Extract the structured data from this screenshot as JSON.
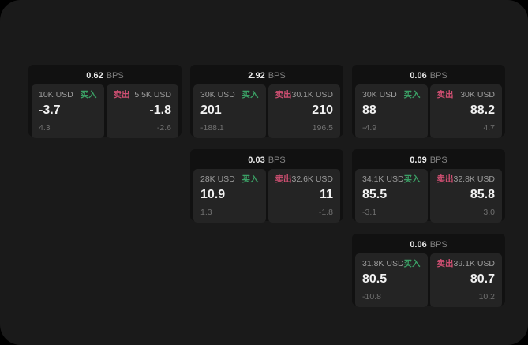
{
  "colors": {
    "surface": "#1a1a1a",
    "card": "#111111",
    "panel": "#242424",
    "buy": "#3ba065",
    "sell": "#cf4f72"
  },
  "labels": {
    "bps": "BPS",
    "buy": "买入",
    "sell": "卖出"
  },
  "cards": [
    {
      "bps": "0.62",
      "buy": {
        "amount": "10K USD",
        "price": "-3.7",
        "delta": "4.3"
      },
      "sell": {
        "amount": "5.5K USD",
        "price": "-1.8",
        "delta": "-2.6"
      }
    },
    {
      "bps": "2.92",
      "buy": {
        "amount": "30K USD",
        "price": "201",
        "delta": "-188.1"
      },
      "sell": {
        "amount": "30.1K USD",
        "price": "210",
        "delta": "196.5"
      }
    },
    {
      "bps": "0.06",
      "buy": {
        "amount": "30K USD",
        "price": "88",
        "delta": "-4.9"
      },
      "sell": {
        "amount": "30K USD",
        "price": "88.2",
        "delta": "4.7"
      }
    },
    {
      "bps": "0.03",
      "buy": {
        "amount": "28K USD",
        "price": "10.9",
        "delta": "1.3"
      },
      "sell": {
        "amount": "32.6K USD",
        "price": "11",
        "delta": "-1.8"
      }
    },
    {
      "bps": "0.09",
      "buy": {
        "amount": "34.1K USD",
        "price": "85.5",
        "delta": "-3.1"
      },
      "sell": {
        "amount": "32.8K USD",
        "price": "85.8",
        "delta": "3.0"
      }
    },
    {
      "bps": "0.06",
      "buy": {
        "amount": "31.8K USD",
        "price": "80.5",
        "delta": "-10.8"
      },
      "sell": {
        "amount": "39.1K USD",
        "price": "80.7",
        "delta": "10.2"
      }
    }
  ]
}
